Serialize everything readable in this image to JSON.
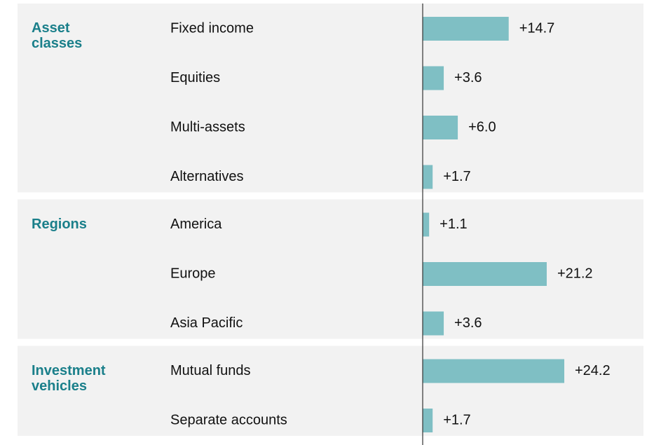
{
  "chart_data": {
    "type": "bar",
    "color": "#7fbfc4",
    "group_color": "#1a7f8a",
    "groups": [
      {
        "name": "Asset classes",
        "categories": [
          "Fixed income",
          "Equities",
          "Multi-assets",
          "Alternatives"
        ],
        "values": [
          14.7,
          3.6,
          6.0,
          1.7
        ],
        "value_labels": [
          "+14.7",
          "+3.6",
          "+6.0",
          "+1.7"
        ]
      },
      {
        "name": "Regions",
        "categories": [
          "America",
          "Europe",
          "Asia Pacific"
        ],
        "values": [
          1.1,
          21.2,
          3.6
        ],
        "value_labels": [
          "+1.1",
          "+21.2",
          "+3.6"
        ]
      },
      {
        "name": "Investment vehicles",
        "categories": [
          "Mutual funds",
          "Separate accounts"
        ],
        "values": [
          24.2,
          1.7
        ],
        "value_labels": [
          "+24.2",
          "+1.7"
        ]
      }
    ]
  }
}
